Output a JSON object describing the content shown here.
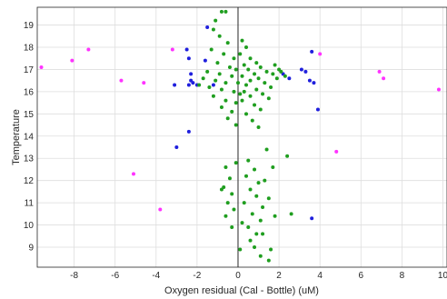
{
  "chart_data": {
    "type": "scatter",
    "title": "",
    "xlabel": "Oxygen residual (Cal - Bottle) (uM)",
    "ylabel": "Temperature",
    "xlim": [
      -9.8,
      10.2
    ],
    "ylim": [
      8.1,
      19.8
    ],
    "x_ticks": [
      -8,
      -6,
      -4,
      -2,
      0,
      2,
      4,
      6,
      8,
      10
    ],
    "y_ticks": [
      9,
      10,
      11,
      12,
      13,
      14,
      15,
      16,
      17,
      18,
      19
    ],
    "grid": true,
    "reference_line_x": 0,
    "colors": {
      "magenta": "#ff33ff",
      "blue": "#1f1fdd",
      "green": "#1f9e1f"
    },
    "series": [
      {
        "color": "#ff33ff",
        "points": [
          [
            -9.6,
            17.1
          ],
          [
            -8.1,
            17.4
          ],
          [
            -7.3,
            17.9
          ],
          [
            -5.7,
            16.5
          ],
          [
            -4.6,
            16.4
          ],
          [
            -5.1,
            12.3
          ],
          [
            -3.8,
            10.7
          ],
          [
            -3.2,
            17.9
          ],
          [
            4.0,
            17.7
          ],
          [
            4.8,
            13.3
          ],
          [
            6.9,
            16.9
          ],
          [
            7.1,
            16.6
          ],
          [
            9.8,
            16.1
          ]
        ]
      },
      {
        "color": "#1f1fdd",
        "points": [
          [
            -3.1,
            16.3
          ],
          [
            -2.4,
            16.3
          ],
          [
            -2.3,
            16.5
          ],
          [
            -2.3,
            16.8
          ],
          [
            -2.4,
            17.5
          ],
          [
            -2.5,
            17.9
          ],
          [
            -2.2,
            16.4
          ],
          [
            -2.0,
            16.3
          ],
          [
            -1.5,
            18.9
          ],
          [
            -1.6,
            17.4
          ],
          [
            -1.2,
            16.3
          ],
          [
            -2.4,
            14.2
          ],
          [
            -3.0,
            13.5
          ],
          [
            3.1,
            17.0
          ],
          [
            3.3,
            16.9
          ],
          [
            3.5,
            16.5
          ],
          [
            3.7,
            16.4
          ],
          [
            3.6,
            17.8
          ],
          [
            3.9,
            15.2
          ],
          [
            3.6,
            10.3
          ],
          [
            2.2,
            16.8
          ],
          [
            2.5,
            16.6
          ]
        ]
      },
      {
        "color": "#1f9e1f",
        "points": [
          [
            -0.8,
            19.6
          ],
          [
            -0.6,
            19.6
          ],
          [
            -1.1,
            19.2
          ],
          [
            -1.2,
            18.8
          ],
          [
            -0.9,
            18.5
          ],
          [
            -0.5,
            18.2
          ],
          [
            -1.3,
            17.9
          ],
          [
            -0.7,
            17.7
          ],
          [
            -0.2,
            17.5
          ],
          [
            -1.0,
            17.3
          ],
          [
            -0.4,
            17.1
          ],
          [
            -1.5,
            16.9
          ],
          [
            -0.9,
            16.8
          ],
          [
            -0.3,
            16.7
          ],
          [
            -1.7,
            16.6
          ],
          [
            -1.1,
            16.5
          ],
          [
            -0.6,
            16.4
          ],
          [
            -1.9,
            16.3
          ],
          [
            -1.4,
            16.2
          ],
          [
            -0.8,
            16.1
          ],
          [
            -0.2,
            16.0
          ],
          [
            -1.2,
            15.8
          ],
          [
            -0.6,
            15.6
          ],
          [
            -0.1,
            15.5
          ],
          [
            -0.8,
            15.3
          ],
          [
            -0.3,
            15.1
          ],
          [
            -0.5,
            14.8
          ],
          [
            -0.1,
            14.5
          ],
          [
            0.2,
            18.3
          ],
          [
            0.4,
            18.0
          ],
          [
            0.1,
            17.7
          ],
          [
            0.6,
            17.5
          ],
          [
            0.9,
            17.3
          ],
          [
            0.3,
            17.2
          ],
          [
            1.1,
            17.1
          ],
          [
            0.5,
            17.0
          ],
          [
            1.4,
            16.9
          ],
          [
            0.8,
            16.8
          ],
          [
            1.7,
            16.8
          ],
          [
            0.2,
            16.7
          ],
          [
            1.0,
            16.6
          ],
          [
            1.9,
            16.6
          ],
          [
            0.6,
            16.5
          ],
          [
            1.3,
            16.4
          ],
          [
            0.4,
            16.3
          ],
          [
            1.6,
            16.2
          ],
          [
            0.9,
            16.1
          ],
          [
            0.3,
            16.0
          ],
          [
            1.2,
            15.9
          ],
          [
            0.6,
            15.8
          ],
          [
            1.5,
            15.7
          ],
          [
            0.2,
            15.6
          ],
          [
            0.8,
            15.4
          ],
          [
            1.1,
            15.2
          ],
          [
            0.4,
            15.0
          ],
          [
            0.7,
            14.7
          ],
          [
            1.0,
            14.4
          ],
          [
            2.1,
            16.9
          ],
          [
            2.3,
            16.7
          ],
          [
            1.8,
            17.2
          ],
          [
            2.0,
            17.0
          ],
          [
            0.0,
            16.4
          ],
          [
            -0.1,
            17.0
          ],
          [
            0.1,
            15.9
          ],
          [
            -0.6,
            12.6
          ],
          [
            -0.4,
            12.1
          ],
          [
            -0.7,
            11.7
          ],
          [
            -0.3,
            11.4
          ],
          [
            -0.5,
            11.0
          ],
          [
            -0.2,
            10.7
          ],
          [
            -0.6,
            10.4
          ],
          [
            -0.3,
            9.9
          ],
          [
            -0.1,
            12.8
          ],
          [
            -0.8,
            11.6
          ],
          [
            0.5,
            12.9
          ],
          [
            0.8,
            12.5
          ],
          [
            0.4,
            12.2
          ],
          [
            1.0,
            11.9
          ],
          [
            0.6,
            11.6
          ],
          [
            0.9,
            11.3
          ],
          [
            0.3,
            11.0
          ],
          [
            1.2,
            10.8
          ],
          [
            0.7,
            10.5
          ],
          [
            1.1,
            10.2
          ],
          [
            0.5,
            9.9
          ],
          [
            0.9,
            9.6
          ],
          [
            0.6,
            9.3
          ],
          [
            0.8,
            9.0
          ],
          [
            1.1,
            8.6
          ],
          [
            1.4,
            13.4
          ],
          [
            1.7,
            12.6
          ],
          [
            1.3,
            12.0
          ],
          [
            1.5,
            11.2
          ],
          [
            1.8,
            10.4
          ],
          [
            1.2,
            9.6
          ],
          [
            1.6,
            8.9
          ],
          [
            1.5,
            8.4
          ],
          [
            2.4,
            13.1
          ],
          [
            2.6,
            10.5
          ],
          [
            0.2,
            10.1
          ],
          [
            0.1,
            8.9
          ]
        ]
      }
    ]
  }
}
